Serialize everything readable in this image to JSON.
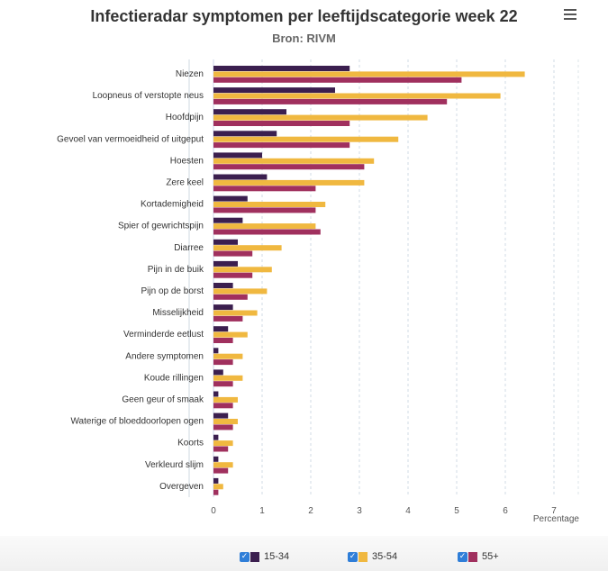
{
  "header": {
    "title": "Infectieradar symptomen per leeftijdscategorie week 22",
    "subtitle": "Bron: RIVM",
    "menu_icon": "hamburger-menu-icon"
  },
  "legend": {
    "items": [
      {
        "label": "15-34",
        "color": "#3b1f4f",
        "checked": true
      },
      {
        "label": "35-54",
        "color": "#f0b840",
        "checked": true
      },
      {
        "label": "55+",
        "color": "#a0305e",
        "checked": true
      }
    ]
  },
  "chart_data": {
    "type": "bar",
    "orientation": "horizontal",
    "title": "Infectieradar symptomen per leeftijdscategorie week 22",
    "subtitle": "Bron: RIVM",
    "xlabel": "Percentage",
    "xlim": [
      0,
      7
    ],
    "xticks": [
      0,
      1,
      2,
      3,
      4,
      5,
      6,
      7
    ],
    "grid": true,
    "legend_position": "bottom",
    "categories": [
      "Niezen",
      "Loopneus of verstopte neus",
      "Hoofdpijn",
      "Gevoel van vermoeidheid of uitgeput",
      "Hoesten",
      "Zere keel",
      "Kortademigheid",
      "Spier of gewrichtspijn",
      "Diarree",
      "Pijn in de buik",
      "Pijn op de borst",
      "Misselijkheid",
      "Verminderde eetlust",
      "Andere symptomen",
      "Koude rillingen",
      "Geen geur of smaak",
      "Waterige of bloeddoorlopen ogen",
      "Koorts",
      "Verkleurd slijm",
      "Overgeven"
    ],
    "series": [
      {
        "name": "15-34",
        "color": "#3b1f4f",
        "values": [
          2.8,
          2.5,
          1.5,
          1.3,
          1.0,
          1.1,
          0.7,
          0.6,
          0.5,
          0.5,
          0.4,
          0.4,
          0.3,
          0.1,
          0.2,
          0.1,
          0.3,
          0.1,
          0.1,
          0.1
        ]
      },
      {
        "name": "35-54",
        "color": "#f0b840",
        "values": [
          6.4,
          5.9,
          4.4,
          3.8,
          3.3,
          3.1,
          2.3,
          2.1,
          1.4,
          1.2,
          1.1,
          0.9,
          0.7,
          0.6,
          0.6,
          0.5,
          0.5,
          0.4,
          0.4,
          0.2
        ]
      },
      {
        "name": "55+",
        "color": "#a0305e",
        "values": [
          5.1,
          4.8,
          2.8,
          2.8,
          3.1,
          2.1,
          2.1,
          2.2,
          0.8,
          0.8,
          0.7,
          0.6,
          0.4,
          0.4,
          0.4,
          0.4,
          0.4,
          0.3,
          0.3,
          0.1
        ]
      }
    ]
  }
}
